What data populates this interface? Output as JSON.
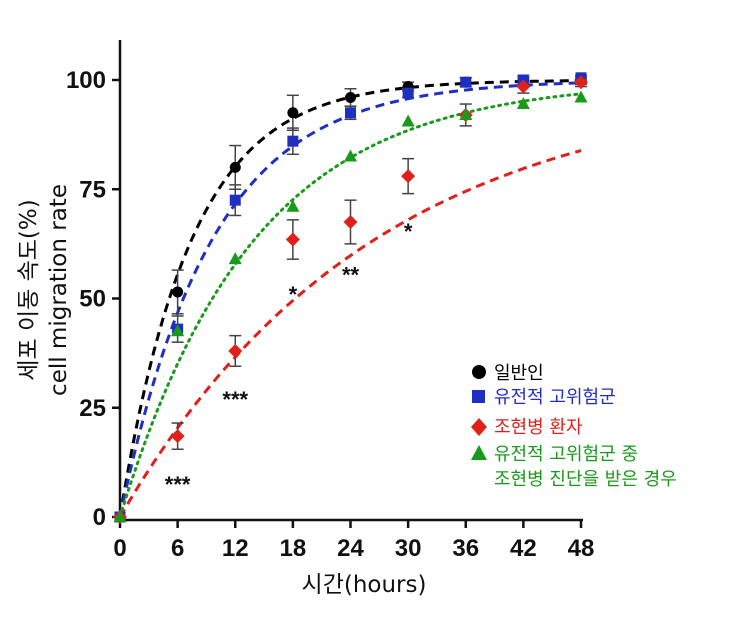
{
  "chart_data": {
    "type": "scatter",
    "xlabel": "시간(hours)",
    "ylabel_line1": "세포 이동 속도(%)",
    "ylabel_line2": "cell migration rate",
    "x_ticks": [
      0,
      6,
      12,
      18,
      24,
      30,
      36,
      42,
      48
    ],
    "y_ticks": [
      0,
      25,
      50,
      75,
      100
    ],
    "xlim": [
      0,
      48
    ],
    "ylim": [
      0,
      108
    ],
    "series": [
      {
        "name": "일반인",
        "color": "#000000",
        "marker": "circle",
        "line_style": "dashed",
        "fit_k": 0.135,
        "x": [
          0,
          6,
          12,
          18,
          24,
          30,
          36,
          42,
          48
        ],
        "y": [
          0,
          51.5,
          80,
          92.5,
          96,
          98.5,
          99.5,
          100,
          100
        ],
        "err": [
          0,
          5,
          5,
          4,
          2,
          1,
          1,
          1,
          1
        ]
      },
      {
        "name": "유전적 고위험군",
        "color": "#1f2fbf",
        "marker": "square",
        "line_style": "dashed",
        "fit_k": 0.105,
        "x": [
          0,
          6,
          12,
          18,
          24,
          30,
          36,
          42,
          48
        ],
        "y": [
          0,
          43,
          72.5,
          86,
          92.5,
          97,
          99.5,
          100,
          100.5
        ],
        "err": [
          0,
          3,
          3.5,
          3,
          1.5,
          1,
          1,
          0.5,
          0.5
        ]
      },
      {
        "name": "조현병 환자",
        "color": "#e0201a",
        "marker": "diamond",
        "line_style": "dashed",
        "fit_k": 0.038,
        "x": [
          0,
          6,
          12,
          18,
          24,
          30,
          36,
          42,
          48
        ],
        "y": [
          0,
          18.5,
          38,
          63.5,
          67.5,
          78,
          92,
          98.5,
          99.5
        ],
        "err": [
          0,
          3,
          3.5,
          4.5,
          5,
          4,
          2.5,
          1.5,
          1
        ]
      },
      {
        "name": "유전적 고위험군 중 조현병 진단을 받은 경우",
        "color": "#1a9a1a",
        "marker": "triangle",
        "line_style": "dotted",
        "fit_k": 0.072,
        "x": [
          0,
          6,
          12,
          18,
          24,
          30,
          36,
          42,
          48
        ],
        "y": [
          0,
          42.5,
          59,
          71,
          82.5,
          90.5,
          92,
          94.5,
          96
        ],
        "err": [
          0,
          0,
          0,
          0,
          0,
          0,
          0,
          0,
          0
        ]
      }
    ],
    "significance": [
      {
        "x": 6,
        "y": 7.5,
        "label": "***"
      },
      {
        "x": 12,
        "y": 27,
        "label": "***"
      },
      {
        "x": 18,
        "y": 51,
        "label": "*"
      },
      {
        "x": 24,
        "y": 55.5,
        "label": "**"
      },
      {
        "x": 30,
        "y": 65.5,
        "label": "*"
      }
    ],
    "legend": {
      "position": "bottom-right",
      "entries": [
        {
          "label": "일반인",
          "marker": "circle",
          "color": "#000000"
        },
        {
          "label": "유전적 고위험군",
          "marker": "square",
          "color": "#1f2fbf"
        },
        {
          "label": "조현병 환자",
          "marker": "diamond",
          "color": "#e0201a"
        },
        {
          "label_line1": "유전적 고위험군 중",
          "label_line2": "조현병 진단을 받은 경우",
          "marker": "triangle",
          "color": "#1a9a1a"
        }
      ]
    }
  }
}
